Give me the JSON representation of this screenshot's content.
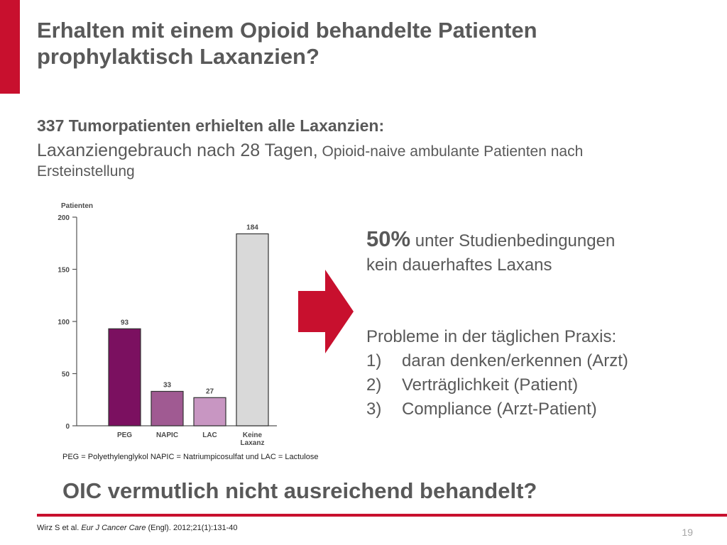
{
  "slide": {
    "title_line1": "Erhalten mit einem Opioid behandelte Patienten",
    "title_line2": "prophylaktisch Laxanzien?",
    "subhead": "337 Tumorpatienten erhielten alle Laxanzien:",
    "subline_big": "Laxanziengebrauch nach 28 Tagen,",
    "subline_small": " Opioid-naive ambulante Patienten nach Ersteinstellung",
    "legend_note": "PEG = Polyethylenglykol NAPIC = Natriumpicosulfat und LAC = Lactulose",
    "stat_pct": "50%",
    "stat_text1": " unter Studienbedingungen",
    "stat_text2": "kein dauerhaftes Laxans",
    "problems_heading": "Probleme in der täglichen Praxis:",
    "problems": [
      {
        "num": "1)",
        "text": "daran denken/erkennen (Arzt)"
      },
      {
        "num": "2)",
        "text": "Verträglichkeit (Patient)"
      },
      {
        "num": "3)",
        "text": "Compliance (Arzt-Patient)"
      }
    ],
    "conclusion": "OIC vermutlich nicht ausreichend behandelt?",
    "footer_author": "Wirz S et al. ",
    "footer_journal": "Eur J Cancer Care",
    "footer_rest": " (Engl). 2012;21(1):131-40",
    "page_number": "19"
  },
  "colors": {
    "accent": "#c8102e",
    "arrow": "#c8102e"
  },
  "chart_data": {
    "type": "bar",
    "ylabel": "Patienten",
    "xlabel": "",
    "ylim": [
      0,
      200
    ],
    "yticks": [
      0,
      50,
      100,
      150,
      200
    ],
    "categories": [
      "PEG",
      "NAPIC",
      "LAC",
      "Keine Laxanz"
    ],
    "values": [
      93,
      33,
      27,
      184
    ],
    "bar_colors": [
      "#7b1060",
      "#a05a92",
      "#c896c2",
      "#d9d9d9"
    ],
    "grid": false
  }
}
